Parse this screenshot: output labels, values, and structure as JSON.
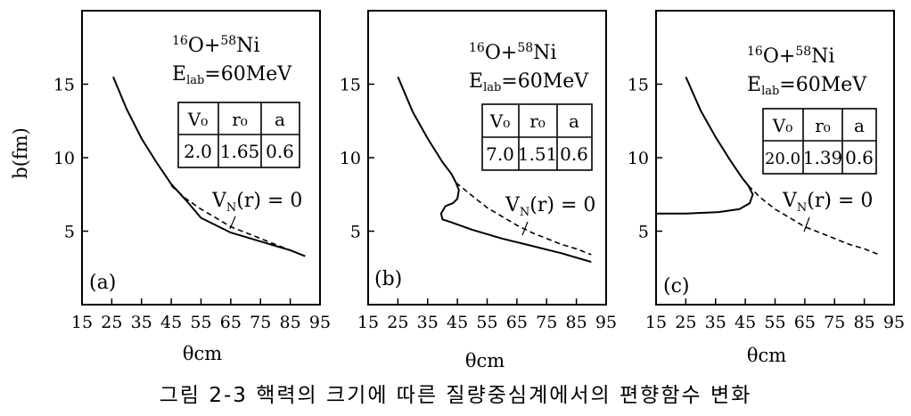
{
  "caption": "그림 2-3  핵력의 크기에 따른 질량중심계에서의 편향함수 변화",
  "chart_data": [
    {
      "type": "line",
      "panel": "(a)",
      "xlabel": "θcm",
      "ylabel": "b(fm)",
      "xticks": [
        "15",
        "25",
        "35",
        "45",
        "55",
        "65",
        "75",
        "85",
        "95"
      ],
      "yticks": [
        "5",
        "10",
        "15"
      ],
      "xlim": [
        15,
        95
      ],
      "ylim": [
        0,
        20
      ],
      "reaction": {
        "a": "16",
        "b": "O",
        "c": "58",
        "d": "Ni"
      },
      "energy": {
        "e": "E",
        "sub": "lab",
        "val": "=60MeV"
      },
      "table": {
        "headers": [
          "V₀",
          "r₀",
          "a"
        ],
        "values": [
          "2.0",
          "1.65",
          "0.6"
        ]
      },
      "curve_label": "V_N(r) = 0",
      "series": [
        {
          "style": "solid",
          "points": [
            [
              25.5,
              15.5
            ],
            [
              30,
              13.3
            ],
            [
              35,
              11.3
            ],
            [
              40,
              9.7
            ],
            [
              45,
              8.2
            ],
            [
              50,
              7.1
            ],
            [
              55,
              5.9
            ],
            [
              60,
              5.4
            ],
            [
              65,
              4.9
            ],
            [
              70,
              4.6
            ],
            [
              75,
              4.3
            ],
            [
              80,
              4.0
            ],
            [
              85,
              3.7
            ],
            [
              90,
              3.3
            ]
          ]
        },
        {
          "style": "dashed",
          "points": [
            [
              45,
              8.1
            ],
            [
              50,
              7.2
            ],
            [
              55,
              6.5
            ],
            [
              60,
              5.9
            ],
            [
              65,
              5.3
            ],
            [
              70,
              4.9
            ],
            [
              75,
              4.5
            ],
            [
              80,
              4.1
            ],
            [
              85,
              3.7
            ],
            [
              90,
              3.3
            ]
          ]
        }
      ]
    },
    {
      "type": "line",
      "panel": "(b)",
      "xlabel": "θcm",
      "xticks": [
        "15",
        "25",
        "35",
        "45",
        "55",
        "65",
        "75",
        "85",
        "95"
      ],
      "yticks": [
        "5",
        "10",
        "15"
      ],
      "xlim": [
        15,
        95
      ],
      "ylim": [
        0,
        20
      ],
      "reaction": {
        "a": "16",
        "b": "O",
        "c": "58",
        "d": "Ni"
      },
      "energy": {
        "e": "E",
        "sub": "lab",
        "val": "=60MeV"
      },
      "table": {
        "headers": [
          "V₀",
          "r₀",
          "a"
        ],
        "values": [
          "7.0",
          "1.51",
          "0.6"
        ]
      },
      "curve_label": "V_N(r) = 0",
      "series": [
        {
          "style": "solid",
          "points": [
            [
              25,
              15.5
            ],
            [
              30,
              13.1
            ],
            [
              35,
              11.3
            ],
            [
              40,
              9.7
            ],
            [
              43,
              8.9
            ],
            [
              44.5,
              8.3
            ],
            [
              45.5,
              7.8
            ],
            [
              45,
              7.2
            ],
            [
              43.5,
              6.9
            ],
            [
              41,
              6.7
            ],
            [
              39.5,
              6.2
            ],
            [
              40,
              5.8
            ],
            [
              43,
              5.6
            ],
            [
              50,
              5.1
            ],
            [
              60,
              4.5
            ],
            [
              70,
              4.0
            ],
            [
              80,
              3.5
            ],
            [
              90,
              2.9
            ]
          ]
        },
        {
          "style": "dashed",
          "points": [
            [
              44.5,
              8.3
            ],
            [
              50,
              7.4
            ],
            [
              55,
              6.6
            ],
            [
              60,
              6.0
            ],
            [
              65,
              5.4
            ],
            [
              70,
              4.9
            ],
            [
              75,
              4.5
            ],
            [
              80,
              4.1
            ],
            [
              85,
              3.8
            ],
            [
              90,
              3.4
            ]
          ]
        }
      ]
    },
    {
      "type": "line",
      "panel": "(c)",
      "xlabel": "θcm",
      "xticks": [
        "15",
        "25",
        "35",
        "45",
        "55",
        "65",
        "75",
        "85",
        "95"
      ],
      "yticks": [
        "5",
        "10",
        "15"
      ],
      "xlim": [
        15,
        95
      ],
      "ylim": [
        0,
        20
      ],
      "reaction": {
        "a": "16",
        "b": "O",
        "c": "58",
        "d": "Ni"
      },
      "energy": {
        "e": "E",
        "sub": "lab",
        "val": "=60MeV"
      },
      "table": {
        "headers": [
          "V₀",
          "r₀",
          "a"
        ],
        "values": [
          "20.0",
          "1.39",
          "0.6"
        ]
      },
      "curve_label": "V_N(r) = 0",
      "series": [
        {
          "style": "solid",
          "points": [
            [
              25,
              15.5
            ],
            [
              30,
              13.2
            ],
            [
              35,
              11.4
            ],
            [
              40,
              9.8
            ],
            [
              44,
              8.6
            ],
            [
              46,
              8.1
            ],
            [
              47.5,
              7.5
            ],
            [
              46.5,
              6.9
            ],
            [
              43,
              6.5
            ],
            [
              36,
              6.3
            ],
            [
              25,
              6.2
            ],
            [
              15,
              6.2
            ]
          ]
        },
        {
          "style": "dashed",
          "points": [
            [
              46,
              8.1
            ],
            [
              50,
              7.3
            ],
            [
              55,
              6.5
            ],
            [
              60,
              5.9
            ],
            [
              65,
              5.3
            ],
            [
              70,
              4.9
            ],
            [
              75,
              4.5
            ],
            [
              80,
              4.1
            ],
            [
              85,
              3.8
            ],
            [
              90,
              3.4
            ]
          ]
        }
      ]
    }
  ]
}
